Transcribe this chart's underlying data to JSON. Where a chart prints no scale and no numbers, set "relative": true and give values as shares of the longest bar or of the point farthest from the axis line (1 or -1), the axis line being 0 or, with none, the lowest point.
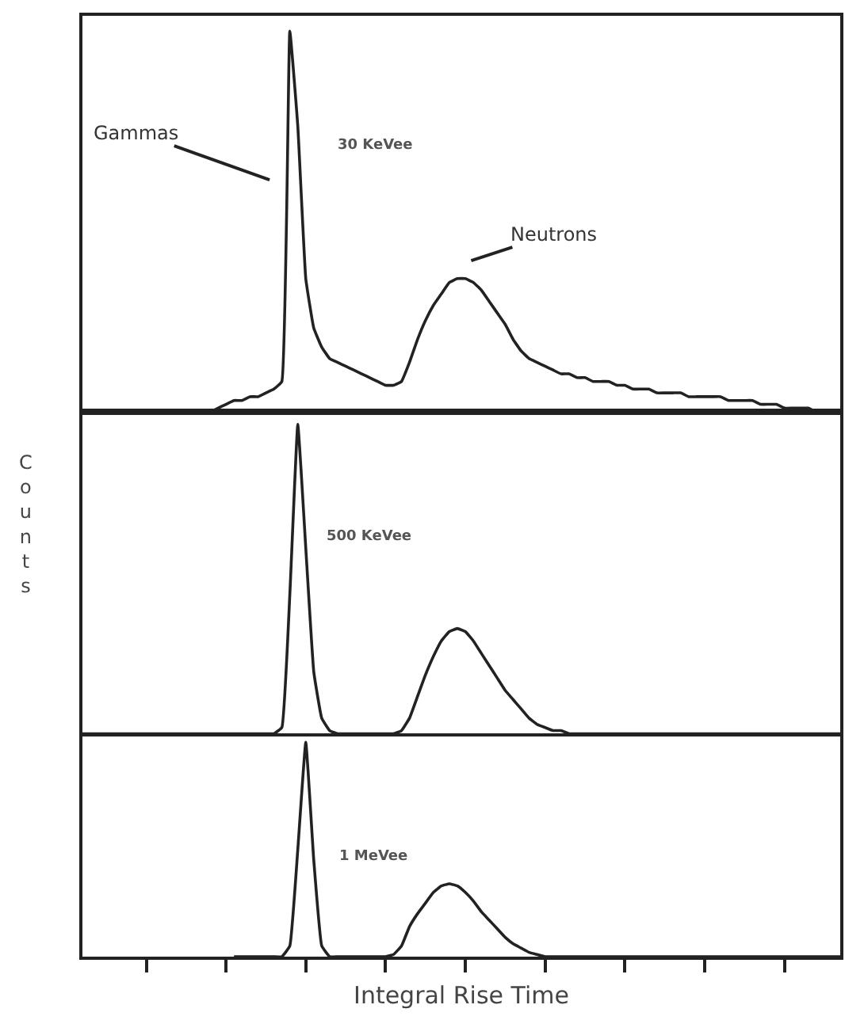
{
  "chart_data": [
    {
      "type": "line",
      "relative": true,
      "tick_labels": false,
      "categories": [
        null,
        null,
        null,
        null,
        null,
        null,
        null,
        null,
        null,
        null,
        null,
        null,
        null,
        null,
        null,
        null,
        null,
        null,
        null,
        null,
        null,
        null,
        null,
        null,
        null,
        null,
        null,
        null,
        null,
        null,
        null,
        null,
        null,
        null,
        null,
        null,
        null,
        null,
        null,
        null,
        null,
        null,
        null,
        null,
        null,
        null,
        null,
        null,
        null,
        null,
        null,
        null,
        null,
        null,
        null,
        null,
        null,
        null,
        null,
        null,
        null,
        null,
        null,
        null,
        null,
        null,
        null,
        null,
        null,
        null,
        null,
        null,
        null,
        null,
        null,
        null,
        null,
        null,
        null,
        null,
        null,
        null,
        null,
        null,
        null,
        null,
        null,
        null,
        null,
        null,
        null,
        null,
        null,
        null,
        null,
        null
      ],
      "series": [
        {
          "color": "#222222",
          "values": [
            0,
            0,
            0,
            0,
            0,
            0,
            0,
            0,
            0,
            0,
            0,
            0,
            0,
            0,
            0,
            0,
            0,
            0.01,
            0.02,
            0.03,
            0.03,
            0.04,
            0.04,
            0.05,
            0.06,
            0.08,
            1.0,
            0.75,
            0.35,
            0.22,
            0.17,
            0.14,
            0.13,
            0.12,
            0.11,
            0.1,
            0.09,
            0.08,
            0.07,
            0.07,
            0.08,
            0.13,
            0.19,
            0.24,
            0.28,
            0.31,
            0.34,
            0.35,
            0.35,
            0.34,
            0.32,
            0.29,
            0.26,
            0.23,
            0.19,
            0.16,
            0.14,
            0.13,
            0.12,
            0.11,
            0.1,
            0.1,
            0.09,
            0.09,
            0.08,
            0.08,
            0.08,
            0.07,
            0.07,
            0.06,
            0.06,
            0.06,
            0.05,
            0.05,
            0.05,
            0.05,
            0.04,
            0.04,
            0.04,
            0.04,
            0.04,
            0.03,
            0.03,
            0.03,
            0.03,
            0.02,
            0.02,
            0.02,
            0.01,
            0.01,
            0.01,
            0.01,
            0,
            0,
            0,
            0
          ]
        }
      ],
      "annotations": [
        "Gammas",
        "30 KeVee",
        "Neutrons"
      ]
    },
    {
      "type": "line",
      "relative": true,
      "tick_labels": false,
      "ylabel": "Counts",
      "categories": [
        null,
        null,
        null,
        null,
        null,
        null,
        null,
        null,
        null,
        null,
        null,
        null,
        null,
        null,
        null,
        null,
        null,
        null,
        null,
        null,
        null,
        null,
        null,
        null,
        null,
        null,
        null,
        null,
        null,
        null,
        null,
        null,
        null,
        null,
        null,
        null,
        null,
        null,
        null,
        null,
        null,
        null,
        null,
        null,
        null,
        null,
        null,
        null,
        null,
        null,
        null,
        null,
        null,
        null,
        null,
        null,
        null,
        null,
        null,
        null,
        null,
        null,
        null,
        null,
        null,
        null,
        null,
        null,
        null,
        null,
        null,
        null,
        null,
        null,
        null,
        null,
        null,
        null,
        null,
        null,
        null,
        null,
        null,
        null,
        null,
        null,
        null,
        null,
        null,
        null,
        null,
        null,
        null,
        null,
        null,
        null
      ],
      "series": [
        {
          "color": "#222222",
          "values": [
            0,
            0,
            0,
            0,
            0,
            0,
            0,
            0,
            0,
            0,
            0,
            0,
            0,
            0,
            0,
            0,
            0,
            0,
            0,
            0,
            0,
            0,
            0,
            0,
            0,
            0.02,
            0.45,
            1.0,
            0.6,
            0.2,
            0.05,
            0.01,
            0,
            0,
            0,
            0,
            0,
            0,
            0,
            0,
            0.01,
            0.05,
            0.12,
            0.19,
            0.25,
            0.3,
            0.33,
            0.34,
            0.33,
            0.3,
            0.26,
            0.22,
            0.18,
            0.14,
            0.11,
            0.08,
            0.05,
            0.03,
            0.02,
            0.01,
            0.01,
            0,
            0,
            0,
            0,
            0,
            0,
            0,
            0,
            0,
            0,
            0,
            0,
            0,
            0,
            0,
            0,
            0,
            0,
            0,
            0,
            0,
            0,
            0,
            0,
            0,
            0,
            0,
            0,
            0,
            0,
            0,
            0,
            0,
            0,
            0
          ]
        }
      ],
      "annotations": [
        "500 KeVee"
      ]
    },
    {
      "type": "line",
      "relative": true,
      "tick_labels": false,
      "xlabel": "Integral Rise Time",
      "categories": [
        null,
        null,
        null,
        null,
        null,
        null,
        null,
        null,
        null,
        null,
        null,
        null,
        null,
        null,
        null,
        null,
        null,
        null,
        null,
        null,
        null,
        null,
        null,
        null,
        null,
        null,
        null,
        null,
        null,
        null,
        null,
        null,
        null,
        null,
        null,
        null,
        null,
        null,
        null,
        null,
        null,
        null,
        null,
        null,
        null,
        null,
        null,
        null,
        null,
        null,
        null,
        null,
        null,
        null,
        null,
        null,
        null,
        null,
        null,
        null,
        null,
        null,
        null,
        null,
        null,
        null,
        null,
        null,
        null,
        null,
        null,
        null,
        null,
        null,
        null,
        null,
        null,
        null,
        null,
        null,
        null,
        null,
        null,
        null,
        null,
        null,
        null,
        null,
        null,
        null,
        null,
        null,
        null,
        null,
        null,
        null
      ],
      "series": [
        {
          "color": "#222222",
          "values": [
            null,
            null,
            null,
            null,
            null,
            null,
            null,
            null,
            null,
            null,
            null,
            null,
            null,
            null,
            null,
            null,
            null,
            null,
            null,
            0,
            0,
            0,
            0,
            0,
            0,
            0,
            0.05,
            0.5,
            1.0,
            0.45,
            0.05,
            0,
            0,
            0,
            0,
            0,
            0,
            0,
            0,
            0.01,
            0.05,
            0.14,
            0.2,
            0.25,
            0.3,
            0.33,
            0.34,
            0.33,
            0.3,
            0.26,
            0.21,
            0.17,
            0.13,
            0.09,
            0.06,
            0.04,
            0.02,
            0.01,
            0,
            0,
            0,
            0,
            0,
            0,
            0,
            0,
            0,
            0,
            0,
            0,
            0,
            0,
            0,
            0,
            0,
            0,
            0,
            0,
            0,
            0,
            0,
            0,
            0,
            0,
            0,
            0,
            0,
            0,
            0,
            0,
            0,
            0,
            0,
            0,
            0,
            0
          ]
        }
      ],
      "annotations": [
        "1 MeVee"
      ]
    }
  ]
}
